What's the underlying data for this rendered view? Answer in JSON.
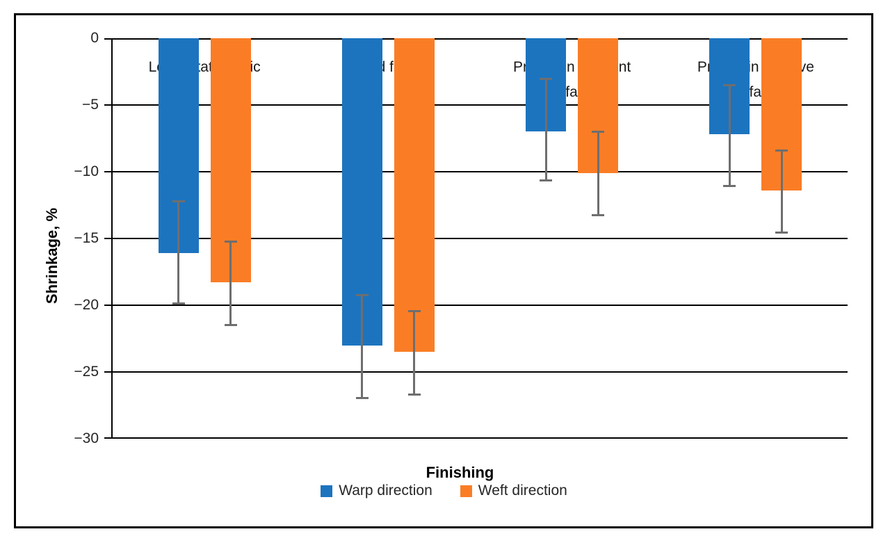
{
  "chart_data": {
    "type": "bar",
    "title": "",
    "xlabel": "Finishing",
    "ylabel": "Shrinkage, %",
    "categories": [
      "Loom state fabric",
      "Dyed fabric",
      "Printed in pigment\nink fabric",
      "Printed in reactive\nink fabric"
    ],
    "series": [
      {
        "name": "Warp direction",
        "color": "#1C74BF",
        "values": [
          -16.1,
          -23.0,
          -7.0,
          -7.2
        ],
        "error_top": [
          -12.2,
          -19.2,
          -3.0,
          -3.5
        ],
        "error_bottom": [
          -19.9,
          -27.0,
          -10.7,
          -11.1
        ]
      },
      {
        "name": "Weft direction",
        "color": "#FA7D26",
        "values": [
          -18.3,
          -23.5,
          -10.1,
          -11.4
        ],
        "error_top": [
          -15.2,
          -20.4,
          -7.0,
          -8.4
        ],
        "error_bottom": [
          -21.5,
          -26.7,
          -13.3,
          -14.6
        ]
      }
    ],
    "ylim": [
      -30,
      0
    ],
    "yticks": [
      0,
      -5,
      -10,
      -15,
      -20,
      -25,
      -30
    ],
    "grid": true,
    "legend_position": "bottom",
    "error_bar_color": "#6E6E6E",
    "axis_color": "#000000"
  }
}
